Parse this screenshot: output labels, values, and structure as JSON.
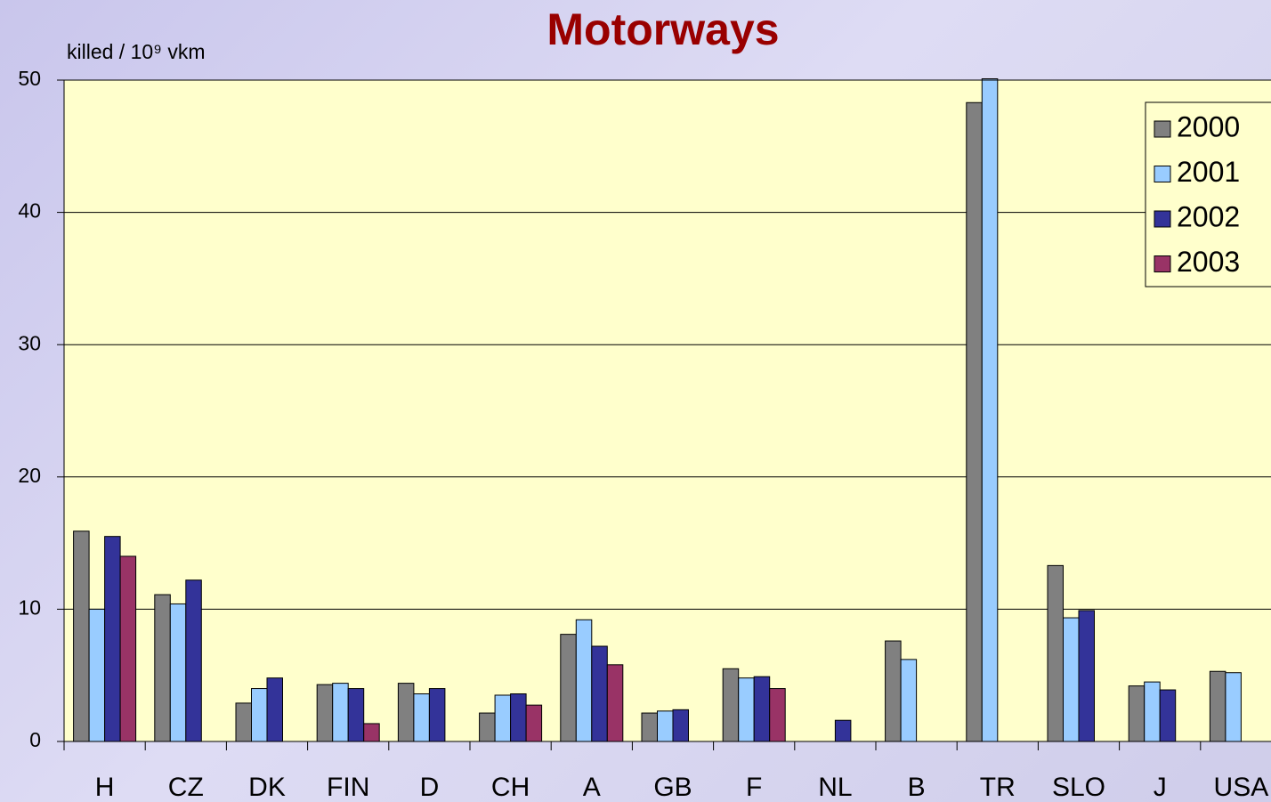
{
  "chart_data": {
    "type": "bar",
    "title": "Motorways",
    "y_label": "killed / 10⁹ vkm",
    "categories": [
      "H",
      "CZ",
      "DK",
      "FIN",
      "D",
      "CH",
      "A",
      "GB",
      "F",
      "NL",
      "B",
      "TR",
      "SLO",
      "J",
      "USA"
    ],
    "series": [
      {
        "name": "2000",
        "color": "#808080",
        "values": [
          15.9,
          11.1,
          2.9,
          4.3,
          4.4,
          2.15,
          8.1,
          2.15,
          5.5,
          null,
          7.6,
          48.3,
          13.3,
          4.2,
          5.3
        ]
      },
      {
        "name": "2001",
        "color": "#99ccff",
        "values": [
          10.0,
          10.4,
          4.0,
          4.4,
          3.6,
          3.5,
          9.2,
          2.3,
          4.8,
          null,
          6.2,
          50.1,
          9.35,
          4.5,
          5.2
        ]
      },
      {
        "name": "2002",
        "color": "#333399",
        "values": [
          15.5,
          12.2,
          4.8,
          4.0,
          4.0,
          3.6,
          7.2,
          2.4,
          4.9,
          1.6,
          null,
          null,
          9.9,
          3.9,
          null
        ]
      },
      {
        "name": "2003",
        "color": "#993366",
        "values": [
          14.0,
          null,
          null,
          1.35,
          null,
          2.75,
          5.8,
          null,
          4.0,
          null,
          null,
          null,
          null,
          null,
          null
        ]
      }
    ],
    "ylim": [
      0,
      50
    ],
    "yticks": [
      0,
      10,
      20,
      30,
      40,
      50
    ],
    "grid": true,
    "legend": "upper right"
  }
}
